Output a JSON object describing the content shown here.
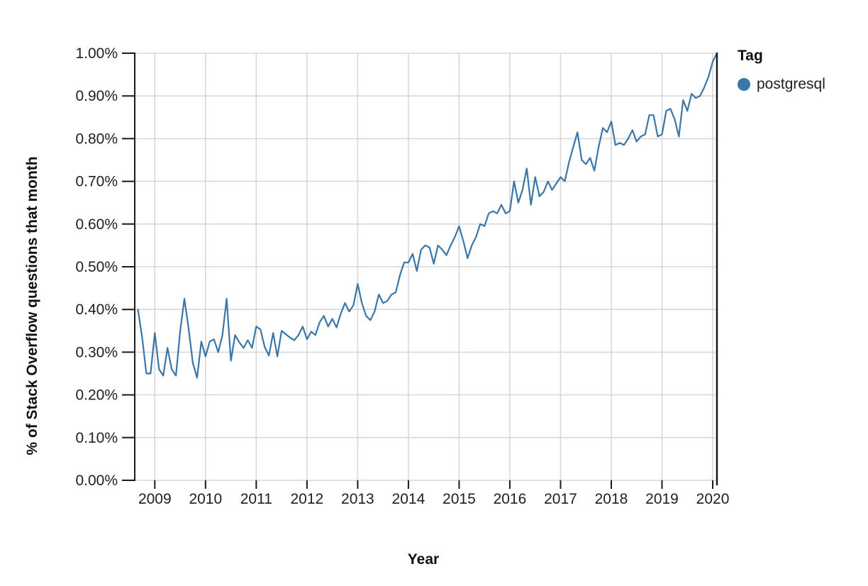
{
  "axes": {
    "x_title": "Year",
    "y_title": "% of Stack Overflow questions that month"
  },
  "legend": {
    "title": "Tag",
    "items": [
      {
        "label": "postgresql",
        "color": "#3a76a8"
      }
    ]
  },
  "chart_data": {
    "type": "line",
    "title": "",
    "xlabel": "Year",
    "ylabel": "% of Stack Overflow questions that month",
    "legend_title": "Tag",
    "legend_position": "right",
    "grid": true,
    "background": "#ffffff",
    "grid_color": "#d8d8d8",
    "ylim": [
      0,
      1.0
    ],
    "y_ticks": [
      {
        "value": 0.0,
        "label": "0.00%"
      },
      {
        "value": 0.1,
        "label": "0.10%"
      },
      {
        "value": 0.2,
        "label": "0.20%"
      },
      {
        "value": 0.3,
        "label": "0.30%"
      },
      {
        "value": 0.4,
        "label": "0.40%"
      },
      {
        "value": 0.5,
        "label": "0.50%"
      },
      {
        "value": 0.6,
        "label": "0.60%"
      },
      {
        "value": 0.7,
        "label": "0.70%"
      },
      {
        "value": 0.8,
        "label": "0.80%"
      },
      {
        "value": 0.9,
        "label": "0.90%"
      },
      {
        "value": 1.0,
        "label": "1.00%"
      }
    ],
    "x_ticks": [
      {
        "value": 2009,
        "label": "2009"
      },
      {
        "value": 2010,
        "label": "2010"
      },
      {
        "value": 2011,
        "label": "2011"
      },
      {
        "value": 2012,
        "label": "2012"
      },
      {
        "value": 2013,
        "label": "2013"
      },
      {
        "value": 2014,
        "label": "2014"
      },
      {
        "value": 2015,
        "label": "2015"
      },
      {
        "value": 2016,
        "label": "2016"
      },
      {
        "value": 2017,
        "label": "2017"
      },
      {
        "value": 2018,
        "label": "2018"
      },
      {
        "value": 2019,
        "label": "2019"
      },
      {
        "value": 2020,
        "label": "2020"
      }
    ],
    "series": [
      {
        "name": "postgresql",
        "color": "#3a76a8",
        "months": [
          "2008-09",
          "2008-10",
          "2008-11",
          "2008-12",
          "2009-01",
          "2009-02",
          "2009-03",
          "2009-04",
          "2009-05",
          "2009-06",
          "2009-07",
          "2009-08",
          "2009-09",
          "2009-10",
          "2009-11",
          "2009-12",
          "2010-01",
          "2010-02",
          "2010-03",
          "2010-04",
          "2010-05",
          "2010-06",
          "2010-07",
          "2010-08",
          "2010-09",
          "2010-10",
          "2010-11",
          "2010-12",
          "2011-01",
          "2011-02",
          "2011-03",
          "2011-04",
          "2011-05",
          "2011-06",
          "2011-07",
          "2011-08",
          "2011-09",
          "2011-10",
          "2011-11",
          "2011-12",
          "2012-01",
          "2012-02",
          "2012-03",
          "2012-04",
          "2012-05",
          "2012-06",
          "2012-07",
          "2012-08",
          "2012-09",
          "2012-10",
          "2012-11",
          "2012-12",
          "2013-01",
          "2013-02",
          "2013-03",
          "2013-04",
          "2013-05",
          "2013-06",
          "2013-07",
          "2013-08",
          "2013-09",
          "2013-10",
          "2013-11",
          "2013-12",
          "2014-01",
          "2014-02",
          "2014-03",
          "2014-04",
          "2014-05",
          "2014-06",
          "2014-07",
          "2014-08",
          "2014-09",
          "2014-10",
          "2014-11",
          "2014-12",
          "2015-01",
          "2015-02",
          "2015-03",
          "2015-04",
          "2015-05",
          "2015-06",
          "2015-07",
          "2015-08",
          "2015-09",
          "2015-10",
          "2015-11",
          "2015-12",
          "2016-01",
          "2016-02",
          "2016-03",
          "2016-04",
          "2016-05",
          "2016-06",
          "2016-07",
          "2016-08",
          "2016-09",
          "2016-10",
          "2016-11",
          "2016-12",
          "2017-01",
          "2017-02",
          "2017-03",
          "2017-04",
          "2017-05",
          "2017-06",
          "2017-07",
          "2017-08",
          "2017-09",
          "2017-10",
          "2017-11",
          "2017-12",
          "2018-01",
          "2018-02",
          "2018-03",
          "2018-04",
          "2018-05",
          "2018-06",
          "2018-07",
          "2018-08",
          "2018-09",
          "2018-10",
          "2018-11",
          "2018-12",
          "2019-01",
          "2019-02",
          "2019-03",
          "2019-04",
          "2019-05",
          "2019-06",
          "2019-07",
          "2019-08",
          "2019-09",
          "2019-10",
          "2019-11",
          "2019-12",
          "2020-01",
          "2020-02"
        ],
        "values": [
          0.4,
          0.335,
          0.25,
          0.25,
          0.345,
          0.26,
          0.245,
          0.31,
          0.26,
          0.245,
          0.35,
          0.425,
          0.355,
          0.275,
          0.24,
          0.325,
          0.29,
          0.325,
          0.33,
          0.3,
          0.34,
          0.425,
          0.28,
          0.34,
          0.323,
          0.31,
          0.328,
          0.31,
          0.36,
          0.353,
          0.312,
          0.292,
          0.345,
          0.29,
          0.35,
          0.342,
          0.334,
          0.328,
          0.34,
          0.36,
          0.33,
          0.348,
          0.34,
          0.37,
          0.385,
          0.36,
          0.378,
          0.358,
          0.39,
          0.415,
          0.395,
          0.41,
          0.46,
          0.415,
          0.385,
          0.375,
          0.395,
          0.435,
          0.415,
          0.42,
          0.435,
          0.44,
          0.48,
          0.51,
          0.51,
          0.53,
          0.49,
          0.54,
          0.55,
          0.545,
          0.507,
          0.55,
          0.54,
          0.527,
          0.55,
          0.57,
          0.595,
          0.56,
          0.52,
          0.55,
          0.57,
          0.6,
          0.595,
          0.625,
          0.63,
          0.625,
          0.645,
          0.625,
          0.63,
          0.7,
          0.65,
          0.68,
          0.73,
          0.645,
          0.71,
          0.665,
          0.675,
          0.7,
          0.68,
          0.695,
          0.71,
          0.7,
          0.745,
          0.78,
          0.815,
          0.75,
          0.74,
          0.755,
          0.725,
          0.78,
          0.825,
          0.815,
          0.84,
          0.785,
          0.79,
          0.785,
          0.8,
          0.82,
          0.793,
          0.805,
          0.81,
          0.855,
          0.855,
          0.805,
          0.81,
          0.865,
          0.87,
          0.845,
          0.805,
          0.89,
          0.865,
          0.905,
          0.895,
          0.9,
          0.92,
          0.945,
          0.98,
          1.0
        ]
      }
    ]
  }
}
